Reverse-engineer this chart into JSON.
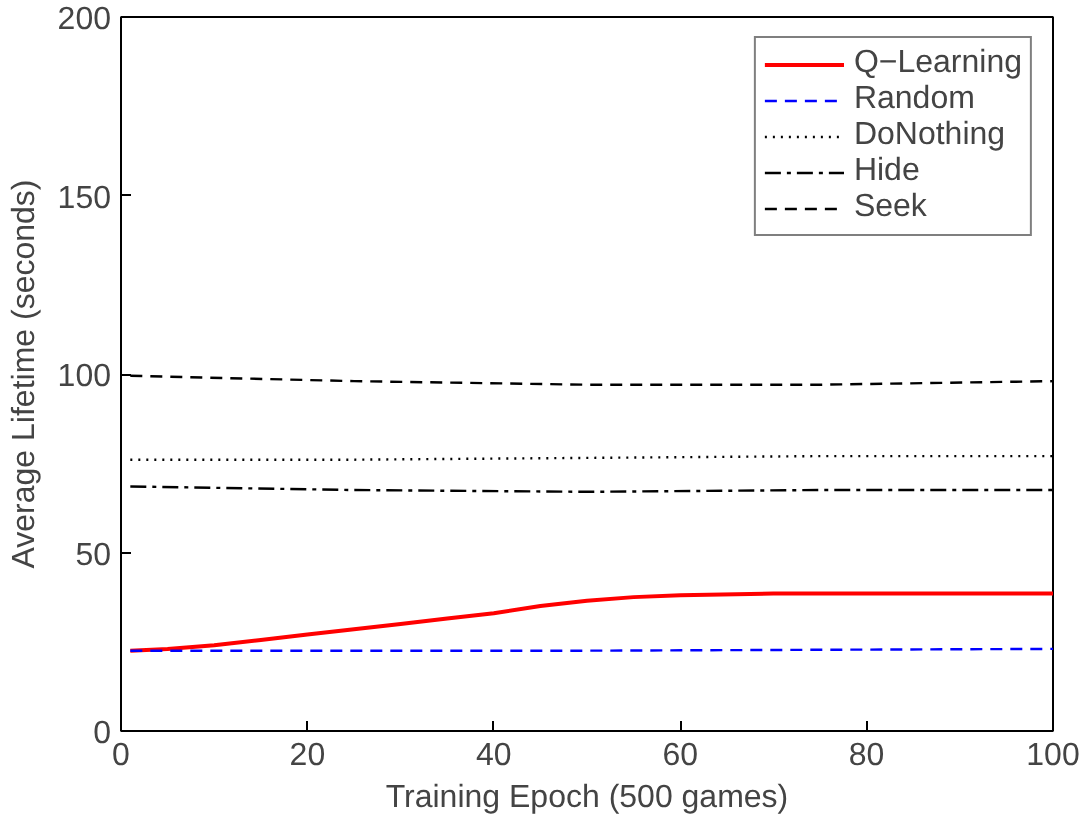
{
  "chart_data": {
    "type": "line",
    "xlabel": "Training Epoch (500 games)",
    "ylabel": "Average Lifetime (seconds)",
    "xlim": [
      0,
      100
    ],
    "ylim": [
      0,
      200
    ],
    "xticks": [
      0,
      20,
      40,
      60,
      80,
      100
    ],
    "yticks": [
      0,
      50,
      100,
      150,
      200
    ],
    "grid": false,
    "legend": "top right",
    "marker": "none",
    "series": [
      {
        "name": "Q−Learning",
        "color": "#ff0000",
        "line_style": "solid",
        "x": [
          1,
          5,
          10,
          15,
          20,
          25,
          30,
          35,
          40,
          45,
          50,
          55,
          60,
          70,
          80,
          90,
          100
        ],
        "values": [
          22.5,
          23,
          24,
          25.5,
          27,
          28.5,
          30,
          31.5,
          33,
          35,
          36.5,
          37.5,
          38,
          38.5,
          38.5,
          38.5,
          38.5
        ]
      },
      {
        "name": "Random",
        "color": "#0000ff",
        "line_style": "dashed",
        "x": [
          1,
          50,
          100
        ],
        "values": [
          22.5,
          22.5,
          23
        ]
      },
      {
        "name": "DoNothing",
        "color": "#000000",
        "line_style": "dotted",
        "x": [
          1,
          25,
          50,
          75,
          100
        ],
        "values": [
          76,
          76,
          76.5,
          77,
          77
        ]
      },
      {
        "name": "Hide",
        "color": "#000000",
        "line_style": "dashdot",
        "x": [
          1,
          25,
          50,
          75,
          100
        ],
        "values": [
          68.5,
          67.5,
          67,
          67.5,
          67.5
        ]
      },
      {
        "name": "Seek",
        "color": "#000000",
        "line_style": "dashed",
        "x": [
          1,
          25,
          50,
          75,
          100
        ],
        "values": [
          99.5,
          98,
          97,
          97,
          98
        ]
      }
    ]
  }
}
